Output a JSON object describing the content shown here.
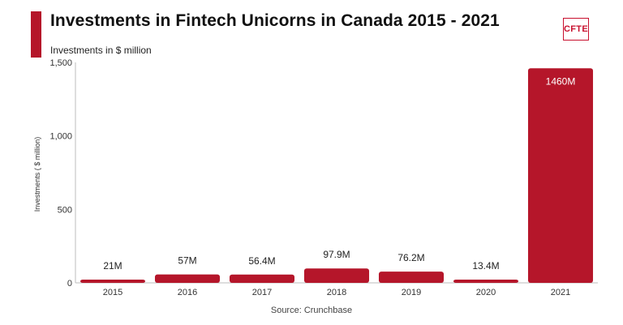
{
  "header": {
    "title": "Investments in Fintech Unicorns in Canada 2015 - 2021",
    "subtitle": "Investments in $ million",
    "logo_text": "CFTE"
  },
  "footer": {
    "source": "Source: Crunchbase"
  },
  "colors": {
    "bar": "#b5162a",
    "accent": "#b5162a",
    "logo": "#c8102e"
  },
  "chart_data": {
    "type": "bar",
    "categories": [
      "2015",
      "2016",
      "2017",
      "2018",
      "2019",
      "2020",
      "2021"
    ],
    "values": [
      21,
      57,
      56.4,
      97.9,
      76.2,
      13.4,
      1460
    ],
    "data_labels": [
      "21M",
      "57M",
      "56.4M",
      "97.9M",
      "76.2M",
      "13.4M",
      "1460M"
    ],
    "ylabel": "Investments ( $ million)",
    "ylim": [
      0,
      1500
    ],
    "yticks": [
      0,
      500,
      1000,
      1500
    ],
    "ytick_labels": [
      "0",
      "500",
      "1,000",
      "1,500"
    ],
    "grid": false
  }
}
